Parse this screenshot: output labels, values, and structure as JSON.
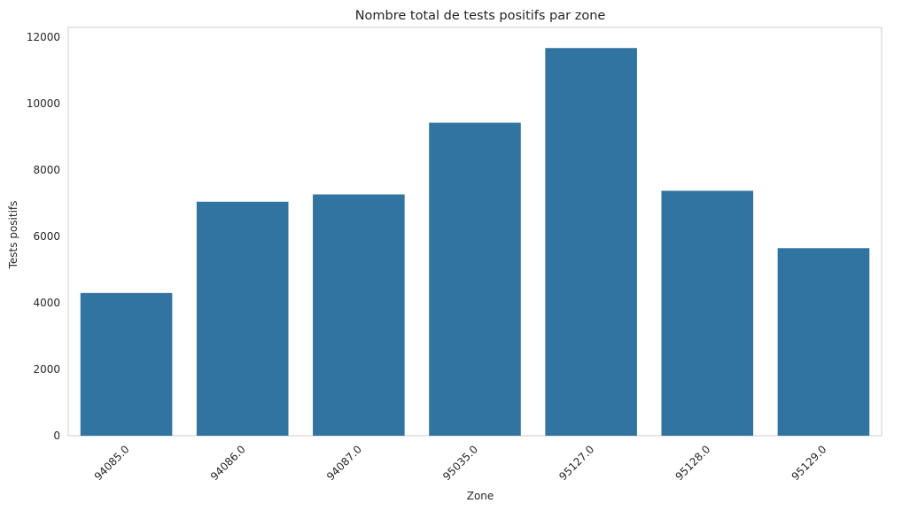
{
  "chart_data": {
    "type": "bar",
    "title": "Nombre total de tests positifs par zone",
    "xlabel": "Zone",
    "ylabel": "Tests positifs",
    "categories": [
      "94085.0",
      "94086.0",
      "94087.0",
      "95035.0",
      "95127.0",
      "95128.0",
      "95129.0"
    ],
    "values": [
      4300,
      7050,
      7270,
      9430,
      11680,
      7380,
      5650
    ],
    "ylim": [
      0,
      12300
    ],
    "yticks": [
      0,
      2000,
      4000,
      6000,
      8000,
      10000,
      12000
    ],
    "bar_color": "#3274a1",
    "grid": false,
    "legend": "none"
  }
}
